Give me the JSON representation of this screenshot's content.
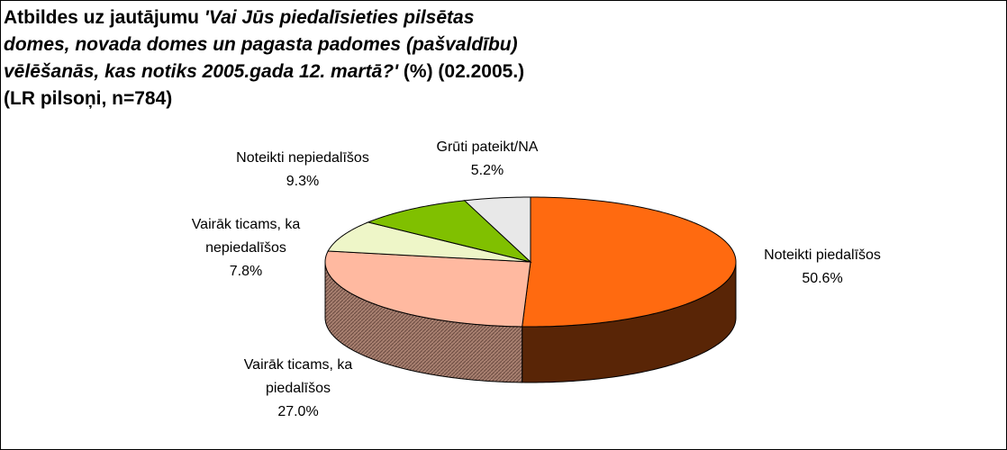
{
  "chart_data": {
    "type": "pie",
    "title": "Atbildes uz jautājumu",
    "question": "'Vai Jūs piedalīsieties pilsētas domes, novada domes un pagasta padomes (pašvaldību) vēlēšanās, kas notiks 2005.gada 12. martā?'",
    "subtitle": "(%) (02.2005.)",
    "note": "(LR pilsoņi, n=784)",
    "categories": [
      "Noteikti piedalīšos",
      "Vairāk ticams, ka piedalīšos",
      "Vairāk ticams, ka nepiedalīšos",
      "Noteikti nepiedalīšos",
      "Grūti pateikt/NA"
    ],
    "values": [
      50.6,
      27.0,
      7.8,
      9.3,
      5.2
    ],
    "value_labels": [
      "50.6%",
      "27.0%",
      "7.8%",
      "9.3%",
      "5.2%"
    ],
    "colors": [
      "#ff6a10",
      "#ffb9a0",
      "#eef6c8",
      "#80c000",
      "#e8e8e8"
    ]
  }
}
